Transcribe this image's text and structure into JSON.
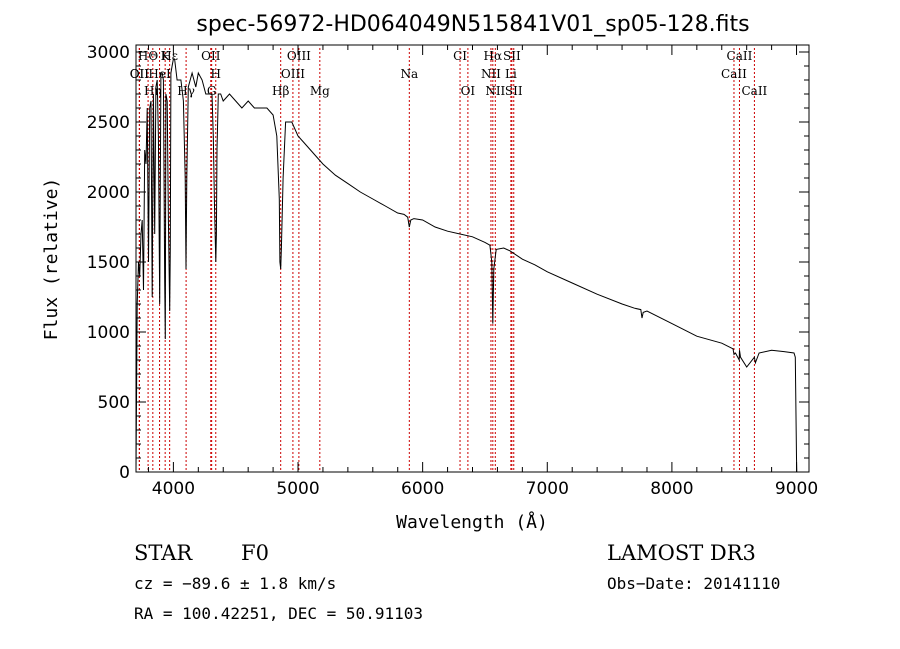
{
  "chart_data": {
    "type": "line",
    "title": "spec-56972-HD064049N515841V01_sp05-128.fits",
    "xlabel": "Wavelength (Å)",
    "ylabel": "Flux (relative)",
    "xlim": [
      3700,
      9100
    ],
    "ylim": [
      0,
      3050
    ],
    "x_ticks": [
      4000,
      5000,
      6000,
      7000,
      8000,
      9000
    ],
    "y_ticks": [
      0,
      500,
      1000,
      1500,
      2000,
      2500,
      3000
    ],
    "series": [
      {
        "name": "spectrum",
        "x": [
          3700,
          3710,
          3720,
          3730,
          3740,
          3750,
          3760,
          3770,
          3780,
          3790,
          3800,
          3810,
          3820,
          3830,
          3840,
          3850,
          3860,
          3870,
          3880,
          3890,
          3900,
          3910,
          3920,
          3930,
          3935,
          3940,
          3950,
          3960,
          3970,
          3975,
          3980,
          3990,
          4000,
          4010,
          4030,
          4060,
          4080,
          4095,
          4101,
          4108,
          4120,
          4150,
          4180,
          4200,
          4230,
          4260,
          4290,
          4310,
          4320,
          4330,
          4340,
          4345,
          4350,
          4360,
          4380,
          4400,
          4450,
          4500,
          4550,
          4600,
          4650,
          4700,
          4750,
          4800,
          4830,
          4850,
          4855,
          4861,
          4867,
          4880,
          4900,
          4950,
          5000,
          5050,
          5100,
          5150,
          5200,
          5300,
          5400,
          5500,
          5600,
          5700,
          5800,
          5850,
          5880,
          5893,
          5905,
          5930,
          6000,
          6100,
          6200,
          6300,
          6400,
          6500,
          6540,
          6555,
          6563,
          6571,
          6590,
          6650,
          6700,
          6800,
          6900,
          7000,
          7200,
          7400,
          7600,
          7700,
          7750,
          7760,
          7770,
          7800,
          8000,
          8200,
          8400,
          8490,
          8498,
          8510,
          8540,
          8542,
          8550,
          8600,
          8662,
          8670,
          8700,
          8800,
          8900,
          8980,
          8990,
          9000,
          9002
        ],
        "values": [
          0,
          1200,
          1500,
          1400,
          1700,
          1800,
          1300,
          2300,
          2200,
          2600,
          1500,
          2600,
          2650,
          1250,
          2700,
          1700,
          2750,
          2800,
          2400,
          1200,
          2850,
          2850,
          2800,
          1350,
          950,
          2700,
          2650,
          1800,
          1150,
          1600,
          2850,
          2900,
          2950,
          2950,
          2800,
          2800,
          2650,
          2100,
          1450,
          2100,
          2750,
          2850,
          2750,
          2850,
          2800,
          2700,
          2700,
          2700,
          2400,
          1900,
          1500,
          1700,
          2300,
          2700,
          2700,
          2650,
          2700,
          2650,
          2600,
          2650,
          2600,
          2600,
          2600,
          2550,
          2400,
          1950,
          1500,
          1450,
          1600,
          2100,
          2500,
          2500,
          2400,
          2350,
          2300,
          2250,
          2200,
          2120,
          2060,
          2000,
          1950,
          1900,
          1850,
          1840,
          1820,
          1750,
          1800,
          1810,
          1800,
          1750,
          1720,
          1700,
          1680,
          1640,
          1620,
          1500,
          1060,
          1450,
          1590,
          1600,
          1580,
          1520,
          1480,
          1430,
          1350,
          1270,
          1200,
          1170,
          1160,
          1100,
          1140,
          1150,
          1060,
          970,
          920,
          880,
          840,
          850,
          800,
          870,
          820,
          750,
          820,
          780,
          850,
          870,
          860,
          850,
          820,
          100,
          0
        ]
      }
    ],
    "emission_lines_label": "dotted red vertical lines",
    "lines": [
      {
        "label": "HΘ",
        "x": 3797
      },
      {
        "label": "K",
        "x": 3934
      },
      {
        "label": "Hε",
        "x": 3970
      },
      {
        "label": "OII",
        "x": 4300
      },
      {
        "label": "OIII",
        "x": 5007
      },
      {
        "label": "CI",
        "x": 6300
      },
      {
        "label": "Hα",
        "x": 6563
      },
      {
        "label": "SII",
        "x": 6716
      },
      {
        "label": "CaII",
        "x": 8542
      },
      {
        "label": "OII",
        "x": 3727
      },
      {
        "label": "HeI",
        "x": 3889
      },
      {
        "label": "H",
        "x": 4340
      },
      {
        "label": "OIII",
        "x": 4959
      },
      {
        "label": "Na",
        "x": 5893
      },
      {
        "label": "NII",
        "x": 6548
      },
      {
        "label": "Li",
        "x": 6708
      },
      {
        "label": "CaII",
        "x": 8498
      },
      {
        "label": "OII",
        "x": 3727
      },
      {
        "label": "Hη",
        "x": 3835
      },
      {
        "label": "Hγ",
        "x": 4102
      },
      {
        "label": "G",
        "x": 4307
      },
      {
        "label": "Hβ",
        "x": 4861
      },
      {
        "label": "Mg",
        "x": 5175
      },
      {
        "label": "OI",
        "x": 6363
      },
      {
        "label": "NII",
        "x": 6583
      },
      {
        "label": "SII",
        "x": 6731
      },
      {
        "label": "CaII",
        "x": 8662
      }
    ]
  },
  "info": {
    "object_class": "STAR",
    "subclass": "F0",
    "survey": "LAMOST DR3",
    "cz_text": "cz = −89.6 ± 1.8 km/s",
    "obs_date_text": "Obs−Date: 20141110",
    "radec_text": "RA = 100.42251, DEC =  50.91103"
  },
  "colors": {
    "spectrum": "#000000",
    "line_markers": "#cc0000",
    "axes": "#000000",
    "background": "#ffffff"
  }
}
